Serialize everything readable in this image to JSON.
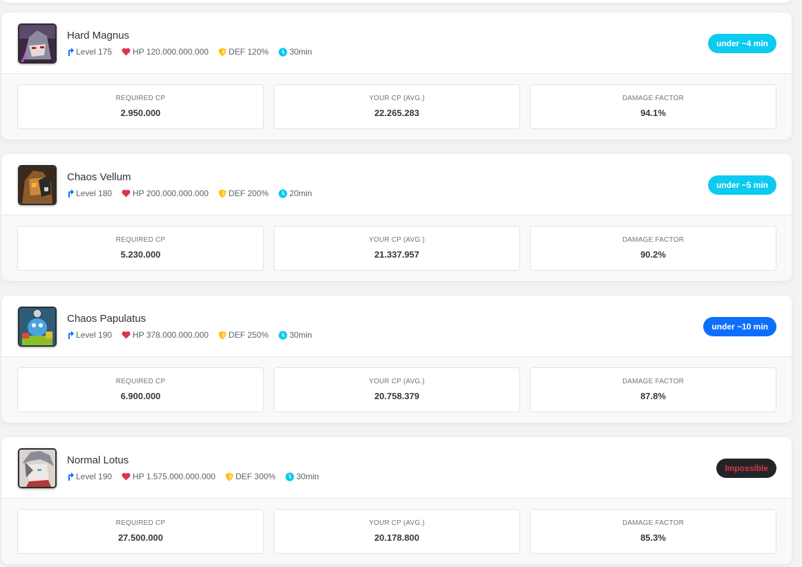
{
  "bosses": [
    {
      "name": "Hard Magnus",
      "level": "Level 175",
      "hp": "HP 120.000.000.000",
      "def": "DEF 120%",
      "time": "30min",
      "badge": "under ~4 min",
      "badge_color": "#0dcaf0",
      "badge_text_color": "#ffffff",
      "avatar_icon": "boss-portrait-magnus",
      "required_cp_label": "REQUIRED CP",
      "required_cp": "2.950.000",
      "your_cp_label": "YOUR CP (AVG.)",
      "your_cp": "22.265.283",
      "damage_factor_label": "DAMAGE FACTOR",
      "damage_factor": "94.1%"
    },
    {
      "name": "Chaos Vellum",
      "level": "Level 180",
      "hp": "HP 200.000.000.000",
      "def": "DEF 200%",
      "time": "20min",
      "badge": "under ~5 min",
      "badge_color": "#0dcaf0",
      "badge_text_color": "#ffffff",
      "avatar_icon": "boss-portrait-vellum",
      "required_cp_label": "REQUIRED CP",
      "required_cp": "5.230.000",
      "your_cp_label": "YOUR CP (AVG.)",
      "your_cp": "21.337.957",
      "damage_factor_label": "DAMAGE FACTOR",
      "damage_factor": "90.2%"
    },
    {
      "name": "Chaos Papulatus",
      "level": "Level 190",
      "hp": "HP 378.000.000.000",
      "def": "DEF 250%",
      "time": "30min",
      "badge": "under ~10 min",
      "badge_color": "#0d6efd",
      "badge_text_color": "#ffffff",
      "avatar_icon": "boss-portrait-papulatus",
      "required_cp_label": "REQUIRED CP",
      "required_cp": "6.900.000",
      "your_cp_label": "YOUR CP (AVG.)",
      "your_cp": "20.758.379",
      "damage_factor_label": "DAMAGE FACTOR",
      "damage_factor": "87.8%"
    },
    {
      "name": "Normal Lotus",
      "level": "Level 190",
      "hp": "HP 1.575.000.000.000",
      "def": "DEF 300%",
      "time": "30min",
      "badge": "Impossible",
      "badge_color": "#212529",
      "badge_text_color": "#dc3545",
      "avatar_icon": "boss-portrait-lotus",
      "required_cp_label": "REQUIRED CP",
      "required_cp": "27.500.000",
      "your_cp_label": "YOUR CP (AVG.)",
      "your_cp": "20.178.800",
      "damage_factor_label": "DAMAGE FACTOR",
      "damage_factor": "85.3%"
    }
  ],
  "icons": {
    "level": "level-up-arrow-icon",
    "hp": "heart-icon",
    "def": "shield-icon",
    "time": "clock-icon"
  },
  "colors": {
    "level_icon": "#0d6efd",
    "hp_icon": "#dc3545",
    "def_icon": "#ffc107",
    "time_icon": "#0dcaf0"
  }
}
